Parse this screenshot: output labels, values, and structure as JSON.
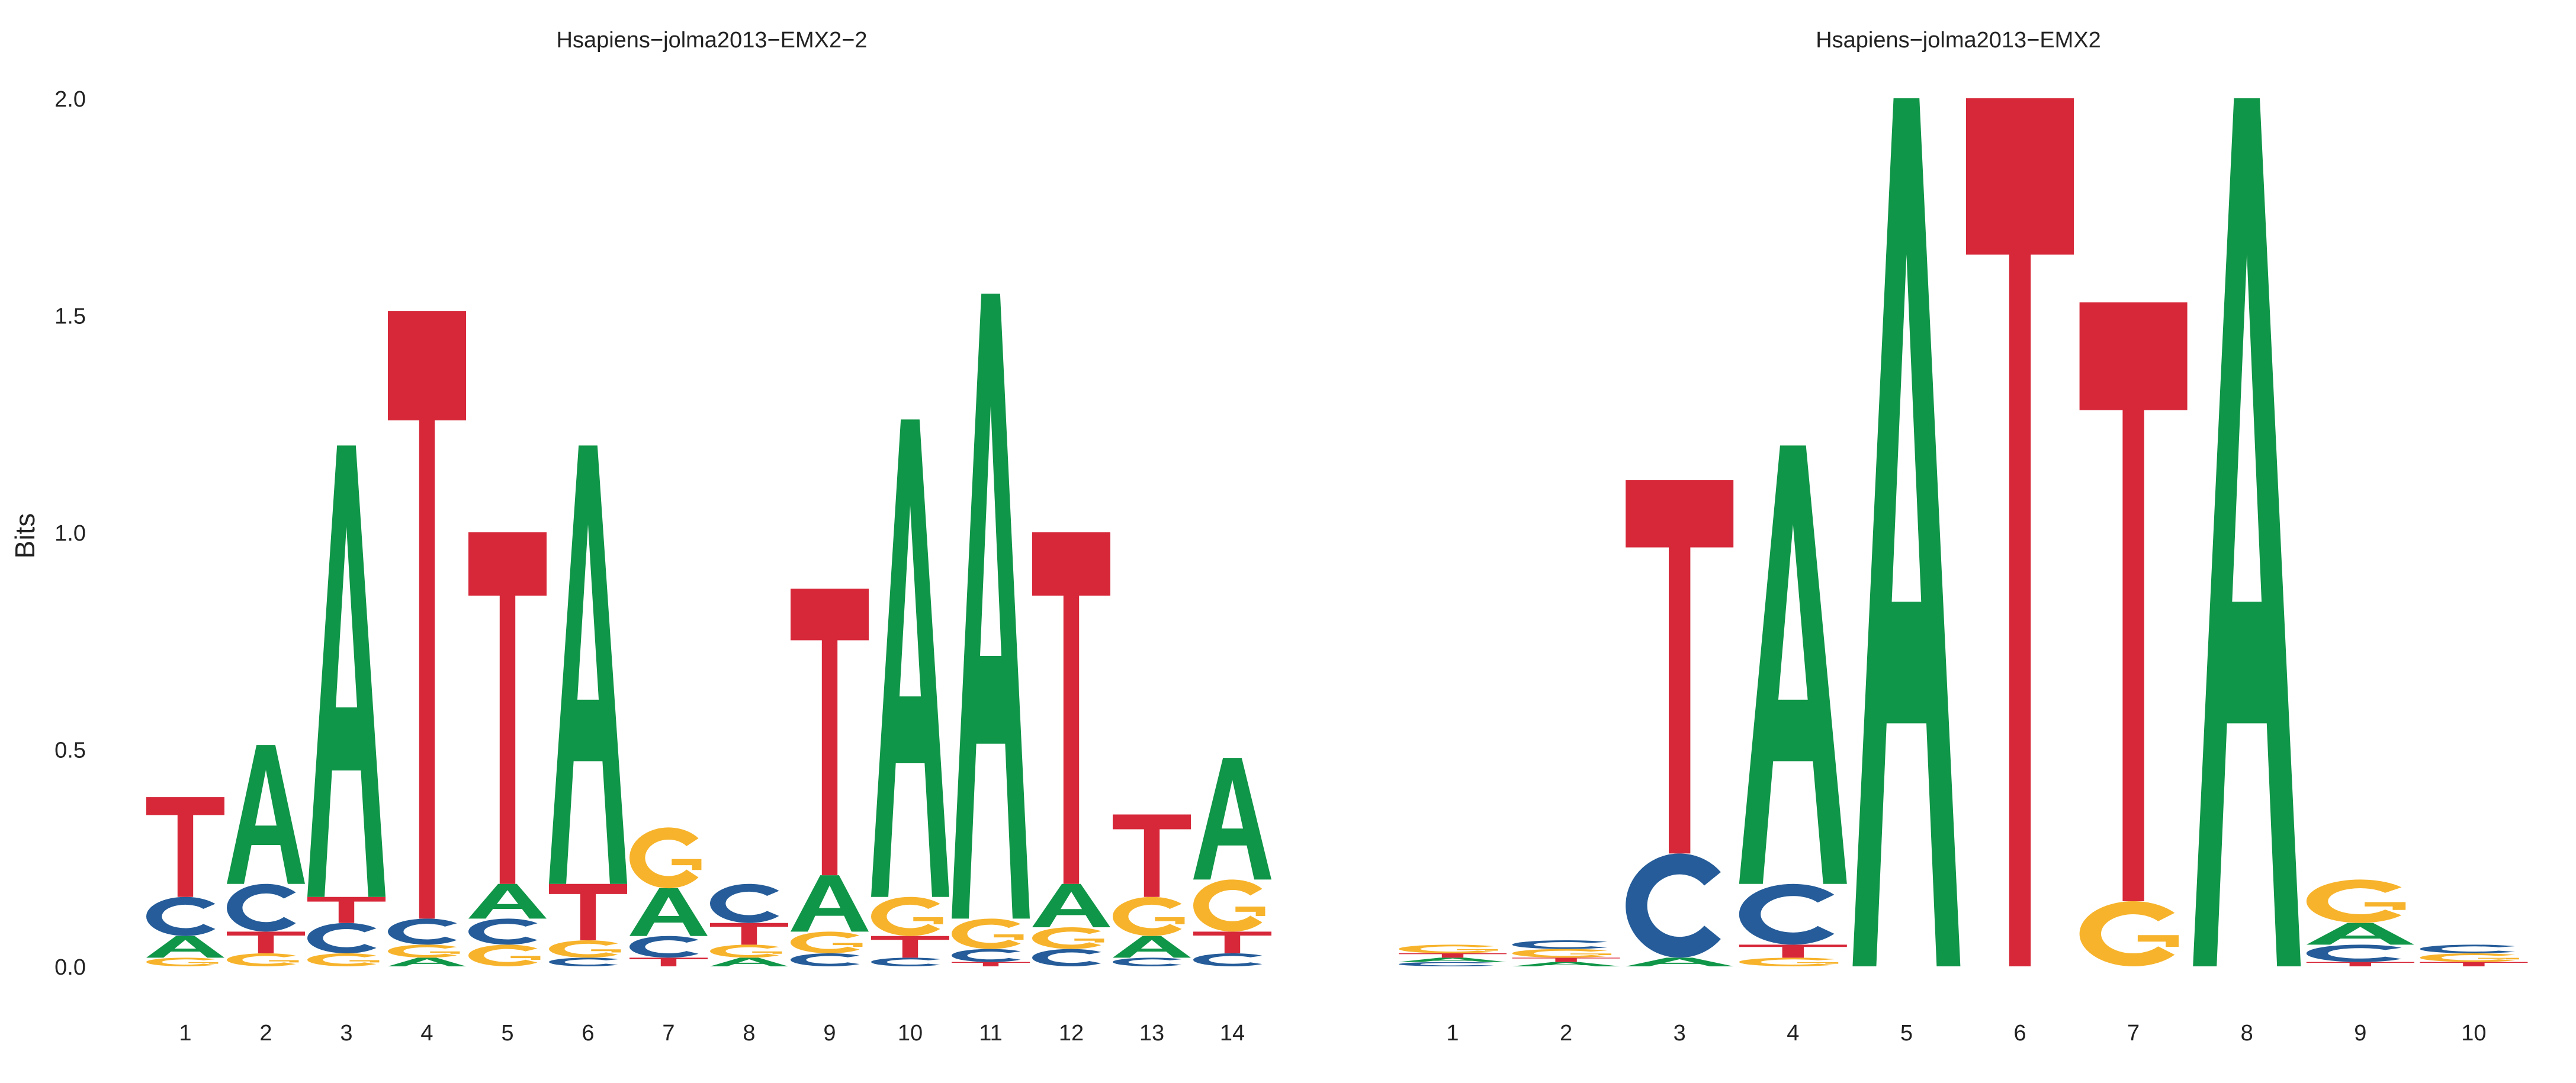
{
  "ylabel": "Bits",
  "colors": {
    "A": "#109648",
    "C": "#255C99",
    "G": "#F7B32B",
    "T": "#D62839"
  },
  "chart_data": [
    {
      "type": "sequence-logo",
      "title": "Hsapiens−jolma2013−EMX2−2",
      "ylabel": "Bits",
      "ylim": [
        0,
        2
      ],
      "yticks": [
        "0.0",
        "0.5",
        "1.0",
        "1.5",
        "2.0"
      ],
      "categories": [
        "1",
        "2",
        "3",
        "4",
        "5",
        "6",
        "7",
        "8",
        "9",
        "10",
        "11",
        "12",
        "13",
        "14"
      ],
      "grid": false,
      "positions": [
        {
          "pos": "1",
          "letters": [
            [
              "G",
              0.02
            ],
            [
              "A",
              0.05
            ],
            [
              "C",
              0.09
            ],
            [
              "T",
              0.23
            ]
          ]
        },
        {
          "pos": "2",
          "letters": [
            [
              "G",
              0.03
            ],
            [
              "T",
              0.05
            ],
            [
              "C",
              0.11
            ],
            [
              "A",
              0.32
            ]
          ]
        },
        {
          "pos": "3",
          "letters": [
            [
              "G",
              0.03
            ],
            [
              "C",
              0.07
            ],
            [
              "T",
              0.06
            ],
            [
              "A",
              1.04
            ]
          ]
        },
        {
          "pos": "4",
          "letters": [
            [
              "A",
              0.02
            ],
            [
              "G",
              0.03
            ],
            [
              "C",
              0.06
            ],
            [
              "T",
              1.4
            ]
          ]
        },
        {
          "pos": "5",
          "letters": [
            [
              "G",
              0.05
            ],
            [
              "C",
              0.06
            ],
            [
              "A",
              0.08
            ],
            [
              "T",
              0.81
            ]
          ]
        },
        {
          "pos": "6",
          "letters": [
            [
              "C",
              0.02
            ],
            [
              "G",
              0.04
            ],
            [
              "T",
              0.13
            ],
            [
              "A",
              1.01
            ]
          ]
        },
        {
          "pos": "7",
          "letters": [
            [
              "T",
              0.02
            ],
            [
              "C",
              0.05
            ],
            [
              "A",
              0.11
            ],
            [
              "G",
              0.14
            ]
          ]
        },
        {
          "pos": "8",
          "letters": [
            [
              "A",
              0.02
            ],
            [
              "G",
              0.03
            ],
            [
              "T",
              0.05
            ],
            [
              "C",
              0.09
            ]
          ]
        },
        {
          "pos": "9",
          "letters": [
            [
              "C",
              0.03
            ],
            [
              "G",
              0.05
            ],
            [
              "A",
              0.13
            ],
            [
              "T",
              0.66
            ]
          ]
        },
        {
          "pos": "10",
          "letters": [
            [
              "C",
              0.02
            ],
            [
              "T",
              0.05
            ],
            [
              "G",
              0.09
            ],
            [
              "A",
              1.1
            ]
          ]
        },
        {
          "pos": "11",
          "letters": [
            [
              "T",
              0.01
            ],
            [
              "C",
              0.03
            ],
            [
              "G",
              0.07
            ],
            [
              "A",
              1.44
            ]
          ]
        },
        {
          "pos": "12",
          "letters": [
            [
              "C",
              0.04
            ],
            [
              "G",
              0.05
            ],
            [
              "A",
              0.1
            ],
            [
              "T",
              0.81
            ]
          ]
        },
        {
          "pos": "13",
          "letters": [
            [
              "C",
              0.02
            ],
            [
              "A",
              0.05
            ],
            [
              "G",
              0.09
            ],
            [
              "T",
              0.19
            ]
          ]
        },
        {
          "pos": "14",
          "letters": [
            [
              "C",
              0.03
            ],
            [
              "T",
              0.05
            ],
            [
              "G",
              0.12
            ],
            [
              "A",
              0.28
            ]
          ]
        }
      ]
    },
    {
      "type": "sequence-logo",
      "title": "Hsapiens−jolma2013−EMX2",
      "ylabel": "",
      "ylim": [
        0,
        2
      ],
      "yticks": [
        "0.0",
        "0.5",
        "1.0",
        "1.5",
        "2.0"
      ],
      "categories": [
        "1",
        "2",
        "3",
        "4",
        "5",
        "6",
        "7",
        "8",
        "9",
        "10"
      ],
      "grid": false,
      "positions": [
        {
          "pos": "1",
          "letters": [
            [
              "C",
              0.01
            ],
            [
              "A",
              0.01
            ],
            [
              "T",
              0.01
            ],
            [
              "G",
              0.02
            ]
          ]
        },
        {
          "pos": "2",
          "letters": [
            [
              "A",
              0.01
            ],
            [
              "T",
              0.01
            ],
            [
              "G",
              0.02
            ],
            [
              "C",
              0.02
            ]
          ]
        },
        {
          "pos": "3",
          "letters": [
            [
              "A",
              0.02
            ],
            [
              "C",
              0.24
            ],
            [
              "T",
              0.86
            ]
          ]
        },
        {
          "pos": "4",
          "letters": [
            [
              "G",
              0.02
            ],
            [
              "T",
              0.03
            ],
            [
              "C",
              0.14
            ],
            [
              "A",
              1.01
            ]
          ]
        },
        {
          "pos": "5",
          "letters": [
            [
              "A",
              2.0
            ]
          ]
        },
        {
          "pos": "6",
          "letters": [
            [
              "T",
              2.0
            ]
          ]
        },
        {
          "pos": "7",
          "letters": [
            [
              "G",
              0.15
            ],
            [
              "T",
              1.38
            ]
          ]
        },
        {
          "pos": "8",
          "letters": [
            [
              "A",
              2.0
            ]
          ]
        },
        {
          "pos": "9",
          "letters": [
            [
              "T",
              0.01
            ],
            [
              "C",
              0.04
            ],
            [
              "A",
              0.05
            ],
            [
              "G",
              0.1
            ]
          ]
        },
        {
          "pos": "10",
          "letters": [
            [
              "T",
              0.01
            ],
            [
              "G",
              0.02
            ],
            [
              "C",
              0.02
            ]
          ]
        }
      ]
    }
  ]
}
